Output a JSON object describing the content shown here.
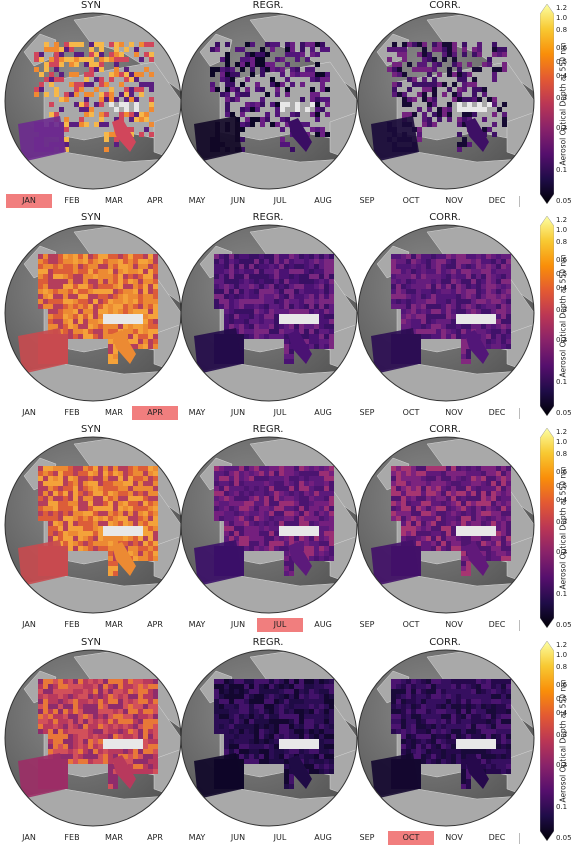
{
  "rows": [
    {
      "panels": [
        {
          "title": "SYN",
          "style": "syn-sparse"
        },
        {
          "title": "REGR.",
          "style": "regr-sparse"
        },
        {
          "title": "CORR.",
          "style": "corr-sparse"
        }
      ],
      "highlight_month": "JAN"
    },
    {
      "panels": [
        {
          "title": "SYN",
          "style": "syn-full"
        },
        {
          "title": "REGR.",
          "style": "regr-full"
        },
        {
          "title": "CORR.",
          "style": "corr-full"
        }
      ],
      "highlight_month": "APR"
    },
    {
      "panels": [
        {
          "title": "SYN",
          "style": "syn-full"
        },
        {
          "title": "REGR.",
          "style": "regr-mid"
        },
        {
          "title": "CORR.",
          "style": "corr-mid"
        }
      ],
      "highlight_month": "JUL"
    },
    {
      "panels": [
        {
          "title": "SYN",
          "style": "syn-oct"
        },
        {
          "title": "REGR.",
          "style": "regr-dark"
        },
        {
          "title": "CORR.",
          "style": "corr-dark"
        }
      ],
      "highlight_month": "OCT"
    }
  ],
  "months": [
    "JAN",
    "FEB",
    "MAR",
    "APR",
    "MAY",
    "JUN",
    "JUL",
    "AUG",
    "SEP",
    "OCT",
    "NOV",
    "DEC"
  ],
  "colorbar": {
    "label": "Aerosol Optical Depth at 550 nm",
    "ticks": [
      "1.2",
      "1.0",
      "0.8",
      "0.6",
      "0.5",
      "0.4",
      "0.3",
      "0.2",
      "0.1",
      "0.05"
    ],
    "colormap": "inferno",
    "colors": [
      "#000004",
      "#1f0c48",
      "#550f6d",
      "#88226a",
      "#ba3655",
      "#e35933",
      "#f98e09",
      "#f8c932",
      "#fcffa4"
    ],
    "highlight_color": "#f17e7e"
  }
}
